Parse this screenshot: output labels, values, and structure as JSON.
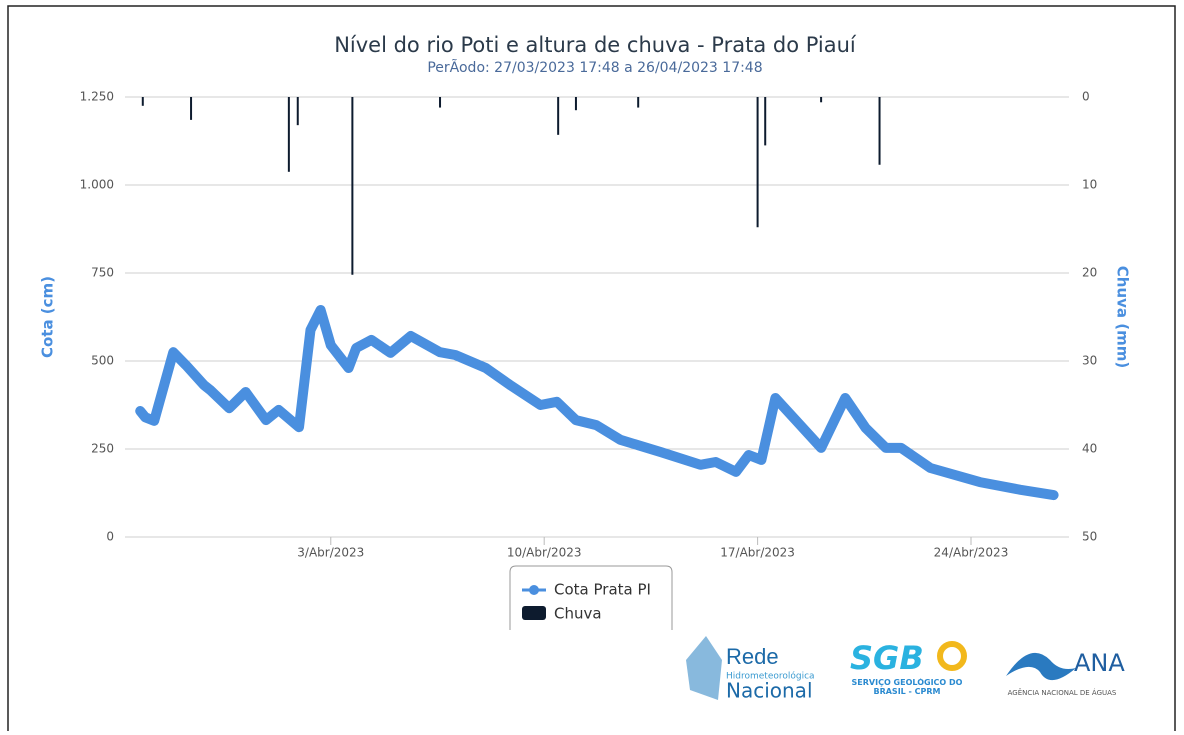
{
  "chart_data": {
    "type": "combo",
    "title": "Nível do rio Poti e altura de chuva - Prata do Piauí",
    "subtitle": "PerÃodo: 27/03/2023 17:48 a 26/04/2023 17:48",
    "y_label": "Cota (cm)",
    "y2_label": "Chuva (mm)",
    "xlim": [
      "2023-03-27T06:00",
      "2023-04-27T02:00"
    ],
    "xticks": [
      {
        "value": "2023-04-03",
        "label": "3/Abr/2023"
      },
      {
        "value": "2023-04-10",
        "label": "10/Abr/2023"
      },
      {
        "value": "2023-04-17",
        "label": "17/Abr/2023"
      },
      {
        "value": "2023-04-24",
        "label": "24/Abr/2023"
      }
    ],
    "ylim": [
      0,
      1250
    ],
    "yticks": [
      0,
      250,
      500,
      750,
      {
        "value": 1000,
        "label": "1.000"
      },
      {
        "value": 1250,
        "label": "1.250"
      }
    ],
    "y2lim": [
      0,
      50
    ],
    "y2ticks": [
      0,
      10,
      20,
      30,
      40,
      50
    ],
    "y2_reversed": true,
    "grid": true,
    "legend": "bottom",
    "series": [
      {
        "name": "Cota Prata PI",
        "color": "#4a8fdf",
        "type": "line",
        "x": [
          "2023-03-27T18:00",
          "2023-03-27T22:00",
          "2023-03-28T05:00",
          "2023-03-28T20:00",
          "2023-03-29T06:00",
          "2023-03-29T20:00",
          "2023-03-30T01:00",
          "2023-03-30T16:00",
          "2023-03-31T05:00",
          "2023-03-31T21:00",
          "2023-04-01T07:00",
          "2023-04-01T23:00",
          "2023-04-02T08:00",
          "2023-04-02T16:00",
          "2023-04-03T00:00",
          "2023-04-03T14:00",
          "2023-04-03T20:00",
          "2023-04-04T08:00",
          "2023-04-04T23:00",
          "2023-04-05T15:00",
          "2023-04-06T14:00",
          "2023-04-07T02:00",
          "2023-04-08T02:00",
          "2023-04-08T21:00",
          "2023-04-09T21:00",
          "2023-04-10T10:00",
          "2023-04-11T01:00",
          "2023-04-11T17:00",
          "2023-04-12T12:00",
          "2023-04-13T20:00",
          "2023-04-15T03:00",
          "2023-04-15T15:00",
          "2023-04-16T07:00",
          "2023-04-16T17:00",
          "2023-04-17T03:00",
          "2023-04-17T14:00",
          "2023-04-18T06:00",
          "2023-04-19T02:00",
          "2023-04-19T21:00",
          "2023-04-20T13:00",
          "2023-04-21T05:00",
          "2023-04-21T17:00",
          "2023-04-22T16:00",
          "2023-04-24T07:00",
          "2023-04-25T15:00",
          "2023-04-26T17:00"
        ],
        "values": [
          358,
          340,
          330,
          525,
          488,
          432,
          418,
          366,
          412,
          332,
          361,
          312,
          588,
          645,
          545,
          480,
          537,
          560,
          523,
          571,
          525,
          517,
          480,
          432,
          375,
          384,
          332,
          318,
          276,
          241,
          205,
          213,
          185,
          233,
          219,
          395,
          332,
          253,
          395,
          310,
          253,
          253,
          196,
          156,
          134,
          119
        ]
      },
      {
        "name": "Chuva",
        "color": "#0d1b2e",
        "type": "bar",
        "axis": "y2",
        "x": [
          "2023-03-27T20:00",
          "2023-03-29T10:00",
          "2023-04-01T15:00",
          "2023-04-01T22:00",
          "2023-04-03T17:00",
          "2023-04-06T14:00",
          "2023-04-10T11:00",
          "2023-04-11T01:00",
          "2023-04-13T02:00",
          "2023-04-17T00:00",
          "2023-04-17T06:00",
          "2023-04-19T02:00",
          "2023-04-21T00:00"
        ],
        "values": [
          1,
          2.6,
          8.5,
          3.2,
          20.2,
          1.2,
          4.3,
          1.5,
          1.2,
          14.8,
          5.5,
          0.6,
          7.7
        ]
      }
    ]
  },
  "logos": {
    "rede_title": "Rede",
    "rede_sub": "Hidrometeorológica",
    "rede_name": "Nacional",
    "sgb": "SGB",
    "sgb_sub": "SERVIÇO GEOLÓGICO DO BRASIL - CPRM",
    "ana": "ANA",
    "ana_sub": "AGÊNCIA NACIONAL DE ÁGUAS"
  }
}
